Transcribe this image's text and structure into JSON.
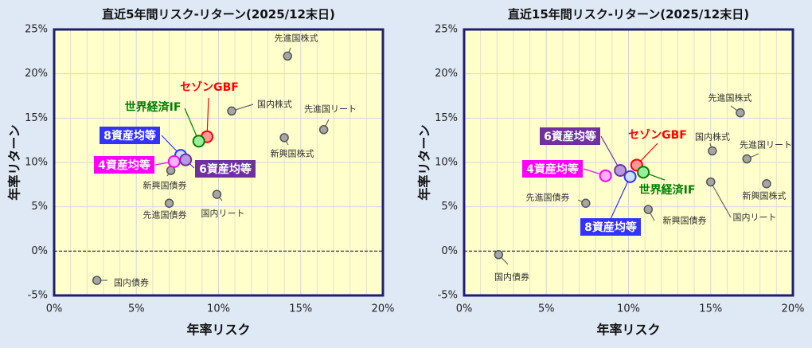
{
  "chart_data": [
    {
      "type": "scatter",
      "title": "直近5年間リスク-リターン(2025/12末日)",
      "xlabel": "年率リスク",
      "ylabel": "年率リターン",
      "xlim": [
        0,
        20
      ],
      "ylim": [
        -5,
        25
      ],
      "xticks": [
        "0%",
        "5%",
        "10%",
        "15%",
        "20%"
      ],
      "yticks": [
        "-5%",
        "0%",
        "5%",
        "10%",
        "15%",
        "20%",
        "25%"
      ],
      "points": [
        {
          "name": "先進国株式",
          "x": 14.2,
          "y": 22.0
        },
        {
          "name": "国内株式",
          "x": 10.8,
          "y": 15.8
        },
        {
          "name": "先進国リート",
          "x": 16.4,
          "y": 13.7
        },
        {
          "name": "新興国株式",
          "x": 14.0,
          "y": 12.8
        },
        {
          "name": "セゾンGBF",
          "x": 9.3,
          "y": 12.9
        },
        {
          "name": "世界経済IF",
          "x": 8.8,
          "y": 12.4
        },
        {
          "name": "8資産均等",
          "x": 7.7,
          "y": 10.8
        },
        {
          "name": "4資産均等",
          "x": 7.3,
          "y": 10.1
        },
        {
          "name": "6資産均等",
          "x": 8.0,
          "y": 10.3
        },
        {
          "name": "新興国債券",
          "x": 7.1,
          "y": 9.1
        },
        {
          "name": "先進国債券",
          "x": 7.0,
          "y": 5.4
        },
        {
          "name": "国内リート",
          "x": 9.9,
          "y": 6.4
        },
        {
          "name": "国内債券",
          "x": 2.6,
          "y": -3.3
        }
      ]
    },
    {
      "type": "scatter",
      "title": "直近15年間リスク-リターン(2025/12末日)",
      "xlabel": "年率リスク",
      "ylabel": "年率リターン",
      "xlim": [
        0,
        20
      ],
      "ylim": [
        -5,
        25
      ],
      "xticks": [
        "0%",
        "5%",
        "10%",
        "15%",
        "20%"
      ],
      "yticks": [
        "-5%",
        "0%",
        "5%",
        "10%",
        "15%",
        "20%",
        "25%"
      ],
      "points": [
        {
          "name": "先進国株式",
          "x": 16.8,
          "y": 15.6
        },
        {
          "name": "国内株式",
          "x": 15.1,
          "y": 11.3
        },
        {
          "name": "先進国リート",
          "x": 17.2,
          "y": 10.4
        },
        {
          "name": "新興国株式",
          "x": 18.4,
          "y": 7.6
        },
        {
          "name": "セゾンGBF",
          "x": 10.5,
          "y": 9.7
        },
        {
          "name": "世界経済IF",
          "x": 10.9,
          "y": 8.9
        },
        {
          "name": "8資産均等",
          "x": 10.1,
          "y": 8.4
        },
        {
          "name": "4資産均等",
          "x": 8.6,
          "y": 8.5
        },
        {
          "name": "6資産均等",
          "x": 9.5,
          "y": 9.1
        },
        {
          "name": "新興国債券",
          "x": 11.2,
          "y": 4.7
        },
        {
          "name": "先進国債券",
          "x": 7.4,
          "y": 5.4
        },
        {
          "name": "国内リート",
          "x": 15.0,
          "y": 7.8
        },
        {
          "name": "国内債券",
          "x": 2.1,
          "y": -0.4
        }
      ]
    }
  ],
  "colors": {
    "plot_bg": "#ffffcc",
    "frame": "#1f1f6e",
    "asset": "#a6a6a6",
    "セゾンGBF": "#ff0000",
    "世界経済IF": "#008000",
    "8資産均等": "#3333ff",
    "4資産均等": "#ff00ff",
    "6資産均等": "#7030a0"
  }
}
